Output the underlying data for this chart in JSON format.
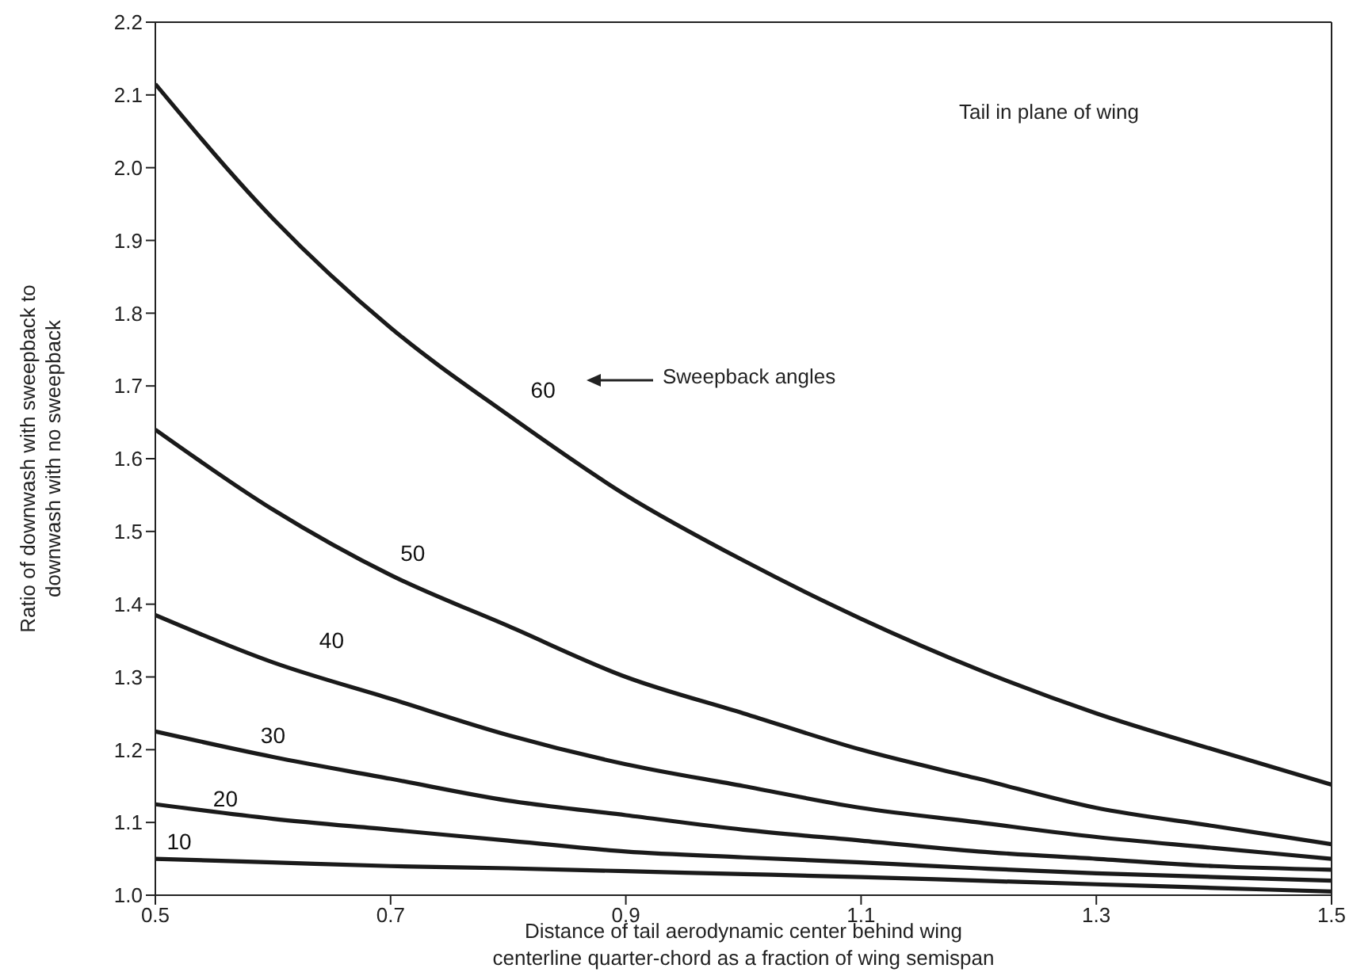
{
  "chart_data": {
    "type": "line",
    "xlabel": "Distance of tail aerodynamic center behind wing\ncenterline quarter-chord as a fraction of wing semispan",
    "ylabel": "Ratio of downwash with sweepback to\ndownwash with no sweepback",
    "x": [
      0.5,
      0.6,
      0.7,
      0.8,
      0.9,
      1.0,
      1.1,
      1.2,
      1.3,
      1.4,
      1.5
    ],
    "series": [
      {
        "name": "60",
        "color": "#1a1a1a",
        "values": [
          2.115,
          1.93,
          1.78,
          1.66,
          1.55,
          1.46,
          1.38,
          1.31,
          1.25,
          1.2,
          1.152
        ]
      },
      {
        "name": "50",
        "color": "#1a1a1a",
        "values": [
          1.64,
          1.53,
          1.44,
          1.37,
          1.3,
          1.25,
          1.2,
          1.16,
          1.12,
          1.095,
          1.07
        ]
      },
      {
        "name": "40",
        "color": "#1a1a1a",
        "values": [
          1.385,
          1.32,
          1.27,
          1.22,
          1.18,
          1.15,
          1.12,
          1.1,
          1.08,
          1.065,
          1.05
        ]
      },
      {
        "name": "30",
        "color": "#1a1a1a",
        "values": [
          1.225,
          1.19,
          1.16,
          1.13,
          1.11,
          1.09,
          1.075,
          1.06,
          1.05,
          1.04,
          1.035
        ]
      },
      {
        "name": "20",
        "color": "#1a1a1a",
        "values": [
          1.125,
          1.105,
          1.09,
          1.075,
          1.06,
          1.052,
          1.045,
          1.037,
          1.03,
          1.025,
          1.02
        ]
      },
      {
        "name": "10",
        "color": "#1a1a1a",
        "values": [
          1.05,
          1.045,
          1.04,
          1.037,
          1.033,
          1.029,
          1.025,
          1.02,
          1.015,
          1.01,
          1.005
        ]
      }
    ],
    "xlim": [
      0.5,
      1.5
    ],
    "xticks": [
      0.5,
      0.7,
      0.9,
      1.1,
      1.3,
      1.5
    ],
    "ylim": [
      1,
      2.2
    ],
    "yticks": [
      {
        "value": 1,
        "label": "1.0"
      },
      1.1,
      1.2,
      1.3,
      1.4,
      1.5,
      1.6,
      1.7,
      1.8,
      1.9,
      {
        "value": 2,
        "label": "2.0"
      },
      2.1,
      2.2
    ],
    "marker": "none",
    "line_style": "solid",
    "annotations": [
      "Sweepback angles",
      "Tail in plane of wing"
    ]
  }
}
